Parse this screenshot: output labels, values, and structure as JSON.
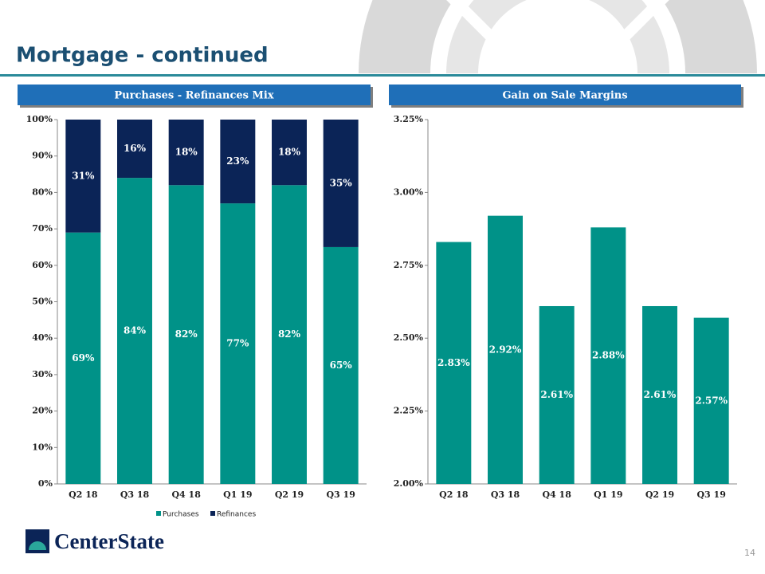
{
  "title": "Mortgage - continued",
  "page_number": "14",
  "logo": "CenterState",
  "chart_data": [
    {
      "type": "bar",
      "stacked": true,
      "title": "Purchases - Refinances Mix",
      "categories": [
        "Q2 18",
        "Q3 18",
        "Q4 18",
        "Q1 19",
        "Q2 19",
        "Q3 19"
      ],
      "series": [
        {
          "name": "Purchases",
          "color": "#009288",
          "values": [
            69,
            84,
            82,
            77,
            82,
            65
          ],
          "value_labels": [
            "69%",
            "84%",
            "82%",
            "77%",
            "82%",
            "65%"
          ]
        },
        {
          "name": "Refinances",
          "color": "#0b2457",
          "values": [
            31,
            16,
            18,
            23,
            18,
            35
          ],
          "value_labels": [
            "31%",
            "16%",
            "18%",
            "23%",
            "18%",
            "35%"
          ]
        }
      ],
      "ylim": [
        0,
        100
      ],
      "yticks": [
        {
          "value": 0,
          "label": "0%"
        },
        {
          "value": 10,
          "label": "10%"
        },
        {
          "value": 20,
          "label": "20%"
        },
        {
          "value": 30,
          "label": "30%"
        },
        {
          "value": 40,
          "label": "40%"
        },
        {
          "value": 50,
          "label": "50%"
        },
        {
          "value": 60,
          "label": "60%"
        },
        {
          "value": 70,
          "label": "70%"
        },
        {
          "value": 80,
          "label": "80%"
        },
        {
          "value": 90,
          "label": "90%"
        },
        {
          "value": 100,
          "label": "100%"
        }
      ],
      "legend": "bottom",
      "grid": false
    },
    {
      "type": "bar",
      "title": "Gain on Sale Margins",
      "categories": [
        "Q2 18",
        "Q3 18",
        "Q4 18",
        "Q1 19",
        "Q2 19",
        "Q3 19"
      ],
      "series": [
        {
          "name": "Gain on Sale Margin",
          "color": "#009288",
          "values": [
            2.83,
            2.92,
            2.61,
            2.88,
            2.61,
            2.57
          ],
          "value_labels": [
            "2.83%",
            "2.92%",
            "2.61%",
            "2.88%",
            "2.61%",
            "2.57%"
          ]
        }
      ],
      "ylim": [
        2.0,
        3.25
      ],
      "yticks": [
        {
          "value": 2.0,
          "label": "2.00%"
        },
        {
          "value": 2.25,
          "label": "2.25%"
        },
        {
          "value": 2.5,
          "label": "2.50%"
        },
        {
          "value": 2.75,
          "label": "2.75%"
        },
        {
          "value": 3.0,
          "label": "3.00%"
        },
        {
          "value": 3.25,
          "label": "3.25%"
        }
      ],
      "legend": "none",
      "grid": false
    }
  ]
}
